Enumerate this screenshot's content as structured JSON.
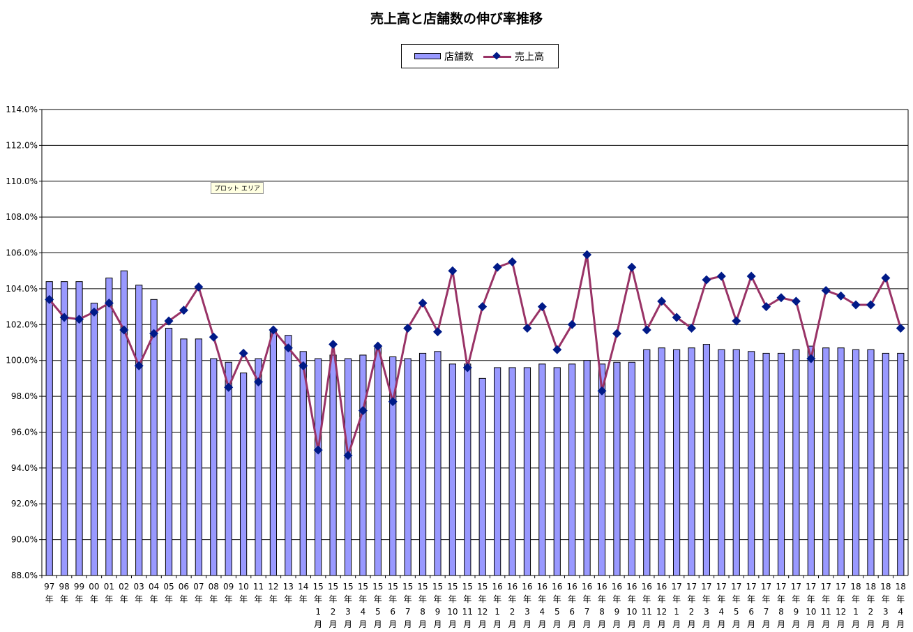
{
  "chart_data": {
    "type": "bar",
    "title": "売上高と店舗数の伸び率推移",
    "categories": [
      "97年",
      "98年",
      "99年",
      "00年",
      "01年",
      "02年",
      "03年",
      "04年",
      "05年",
      "06年",
      "07年",
      "08年",
      "09年",
      "10年",
      "11年",
      "12年",
      "13年",
      "14年",
      "15年1月",
      "15年2月",
      "15年3月",
      "15年4月",
      "15年5月",
      "15年6月",
      "15年7月",
      "15年8月",
      "15年9月",
      "15年10月",
      "15年11月",
      "15年12月",
      "16年1月",
      "16年2月",
      "16年3月",
      "16年4月",
      "16年5月",
      "16年6月",
      "16年7月",
      "16年8月",
      "16年9月",
      "16年10月",
      "16年11月",
      "16年12月",
      "17年1月",
      "17年2月",
      "17年3月",
      "17年4月",
      "17年5月",
      "17年6月",
      "17年7月",
      "17年8月",
      "17年9月",
      "17年10月",
      "17年11月",
      "17年12月",
      "18年1月",
      "18年2月",
      "18年3月",
      "18年4月"
    ],
    "tick_labels": [
      [
        "97",
        "年"
      ],
      [
        "98",
        "年"
      ],
      [
        "99",
        "年"
      ],
      [
        "00",
        "年"
      ],
      [
        "01",
        "年"
      ],
      [
        "02",
        "年"
      ],
      [
        "03",
        "年"
      ],
      [
        "04",
        "年"
      ],
      [
        "05",
        "年"
      ],
      [
        "06",
        "年"
      ],
      [
        "07",
        "年"
      ],
      [
        "08",
        "年"
      ],
      [
        "09",
        "年"
      ],
      [
        "10",
        "年"
      ],
      [
        "11",
        "年"
      ],
      [
        "12",
        "年"
      ],
      [
        "13",
        "年"
      ],
      [
        "14",
        "年"
      ],
      [
        "15",
        "年",
        "1",
        "月"
      ],
      [
        "15",
        "年",
        "2",
        "月"
      ],
      [
        "15",
        "年",
        "3",
        "月"
      ],
      [
        "15",
        "年",
        "4",
        "月"
      ],
      [
        "15",
        "年",
        "5",
        "月"
      ],
      [
        "15",
        "年",
        "6",
        "月"
      ],
      [
        "15",
        "年",
        "7",
        "月"
      ],
      [
        "15",
        "年",
        "8",
        "月"
      ],
      [
        "15",
        "年",
        "9",
        "月"
      ],
      [
        "15",
        "年",
        "10",
        "月"
      ],
      [
        "15",
        "年",
        "11",
        "月"
      ],
      [
        "15",
        "年",
        "12",
        "月"
      ],
      [
        "16",
        "年",
        "1",
        "月"
      ],
      [
        "16",
        "年",
        "2",
        "月"
      ],
      [
        "16",
        "年",
        "3",
        "月"
      ],
      [
        "16",
        "年",
        "4",
        "月"
      ],
      [
        "16",
        "年",
        "5",
        "月"
      ],
      [
        "16",
        "年",
        "6",
        "月"
      ],
      [
        "16",
        "年",
        "7",
        "月"
      ],
      [
        "16",
        "年",
        "8",
        "月"
      ],
      [
        "16",
        "年",
        "9",
        "月"
      ],
      [
        "16",
        "年",
        "10",
        "月"
      ],
      [
        "16",
        "年",
        "11",
        "月"
      ],
      [
        "16",
        "年",
        "12",
        "月"
      ],
      [
        "17",
        "年",
        "1",
        "月"
      ],
      [
        "17",
        "年",
        "2",
        "月"
      ],
      [
        "17",
        "年",
        "3",
        "月"
      ],
      [
        "17",
        "年",
        "4",
        "月"
      ],
      [
        "17",
        "年",
        "5",
        "月"
      ],
      [
        "17",
        "年",
        "6",
        "月"
      ],
      [
        "17",
        "年",
        "7",
        "月"
      ],
      [
        "17",
        "年",
        "8",
        "月"
      ],
      [
        "17",
        "年",
        "9",
        "月"
      ],
      [
        "17",
        "年",
        "10",
        "月"
      ],
      [
        "17",
        "年",
        "11",
        "月"
      ],
      [
        "17",
        "年",
        "12",
        "月"
      ],
      [
        "18",
        "年",
        "1",
        "月"
      ],
      [
        "18",
        "年",
        "2",
        "月"
      ],
      [
        "18",
        "年",
        "3",
        "月"
      ],
      [
        "18",
        "年",
        "4",
        "月"
      ]
    ],
    "series": [
      {
        "name": "店舗数",
        "type": "bar",
        "color": "#9999ff",
        "values": [
          104.4,
          104.4,
          104.4,
          103.2,
          104.6,
          105.0,
          104.2,
          103.4,
          101.8,
          101.2,
          101.2,
          100.1,
          99.9,
          99.3,
          100.1,
          101.6,
          101.4,
          100.5,
          100.1,
          100.3,
          100.1,
          100.3,
          100.7,
          100.2,
          100.1,
          100.4,
          100.5,
          99.8,
          99.8,
          99.0,
          99.6,
          99.6,
          99.6,
          99.8,
          99.6,
          99.8,
          100.0,
          99.8,
          99.9,
          99.9,
          100.6,
          100.7,
          100.6,
          100.7,
          100.9,
          100.6,
          100.6,
          100.5,
          100.4,
          100.4,
          100.6,
          100.8,
          100.7,
          100.7,
          100.6,
          100.6,
          100.4,
          100.4
        ]
      },
      {
        "name": "売上高",
        "type": "line",
        "color": "#993366",
        "marker_color": "#001a88",
        "values": [
          103.4,
          102.4,
          102.3,
          102.7,
          103.2,
          101.7,
          99.7,
          101.5,
          102.2,
          102.8,
          104.1,
          101.3,
          98.5,
          100.4,
          98.8,
          101.7,
          100.7,
          99.7,
          95.0,
          100.9,
          94.7,
          97.2,
          100.8,
          97.7,
          101.8,
          103.2,
          101.6,
          105.0,
          99.6,
          103.0,
          105.2,
          105.5,
          101.8,
          103.0,
          100.6,
          102.0,
          105.9,
          98.3,
          101.5,
          105.2,
          101.7,
          103.3,
          102.4,
          101.8,
          104.5,
          104.7,
          102.2,
          104.7,
          103.0,
          103.5,
          103.3,
          100.1,
          103.9,
          103.6,
          103.1,
          103.1,
          104.6,
          101.8
        ]
      }
    ],
    "ylim": [
      88.0,
      114.0
    ],
    "yticks": [
      "88.0%",
      "90.0%",
      "92.0%",
      "94.0%",
      "96.0%",
      "98.0%",
      "100.0%",
      "102.0%",
      "104.0%",
      "106.0%",
      "108.0%",
      "110.0%",
      "112.0%",
      "114.0%"
    ],
    "grid": true,
    "legend_position": "top-center",
    "xlabel": "",
    "ylabel": "",
    "plot_area_label": "プロット エリア",
    "plot_background": "#ffffff",
    "gridline_color": "#000000"
  }
}
